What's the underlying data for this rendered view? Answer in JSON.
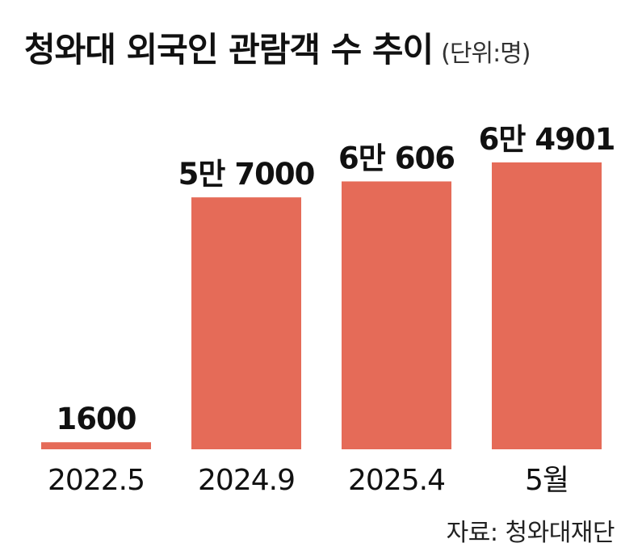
{
  "header": {
    "title": "청와대 외국인 관람객 수 추이",
    "unit": "(단위:명)"
  },
  "footer": {
    "source": "자료: 청와대재단"
  },
  "colors": {
    "bar": "#e56b58",
    "text": "#111111"
  },
  "chart_data": {
    "type": "bar",
    "title": "청와대 외국인 관람객 수 추이",
    "unit": "(단위:명)",
    "categories": [
      "2022.5",
      "2024.9",
      "2025.4",
      "5월"
    ],
    "values": [
      1600,
      57000,
      60606,
      64901
    ],
    "data_labels": [
      "1600",
      "5만 7000",
      "6만 606",
      "6만 4901"
    ],
    "xlabel": "",
    "ylabel": "",
    "grid": false,
    "legend": "none"
  }
}
